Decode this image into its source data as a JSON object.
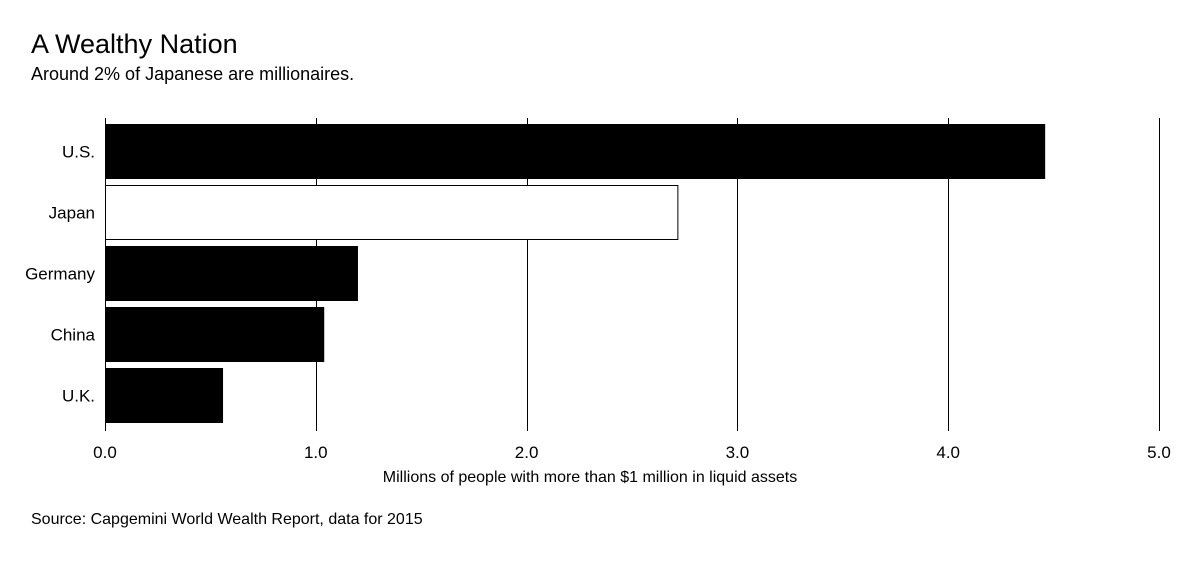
{
  "header": {
    "title": "A Wealthy Nation",
    "subtitle": "Around 2% of Japanese are millionaires."
  },
  "footer": {
    "source": "Source: Capgemini World Wealth Report, data for 2015"
  },
  "colors": {
    "bar_fill": "#000000",
    "highlight_fill": "#ffffff",
    "gridline": "#000000",
    "text": "#000000"
  },
  "chart_data": {
    "type": "bar",
    "orientation": "horizontal",
    "title": "A Wealthy Nation",
    "subtitle": "Around 2% of Japanese are millionaires.",
    "categories": [
      "U.S.",
      "Japan",
      "Germany",
      "China",
      "U.K."
    ],
    "values": [
      4.46,
      2.72,
      1.2,
      1.04,
      0.56
    ],
    "highlight": "Japan",
    "xlabel": "Millions of people with more than $1 million in liquid assets",
    "ylabel": "",
    "xlim": [
      0,
      5
    ],
    "xticks": [
      0,
      1,
      2,
      3,
      4,
      5
    ],
    "xtick_labels": [
      "0.0",
      "1.0",
      "2.0",
      "3.0",
      "4.0",
      "5.0"
    ],
    "grid": true,
    "legend": "none"
  }
}
